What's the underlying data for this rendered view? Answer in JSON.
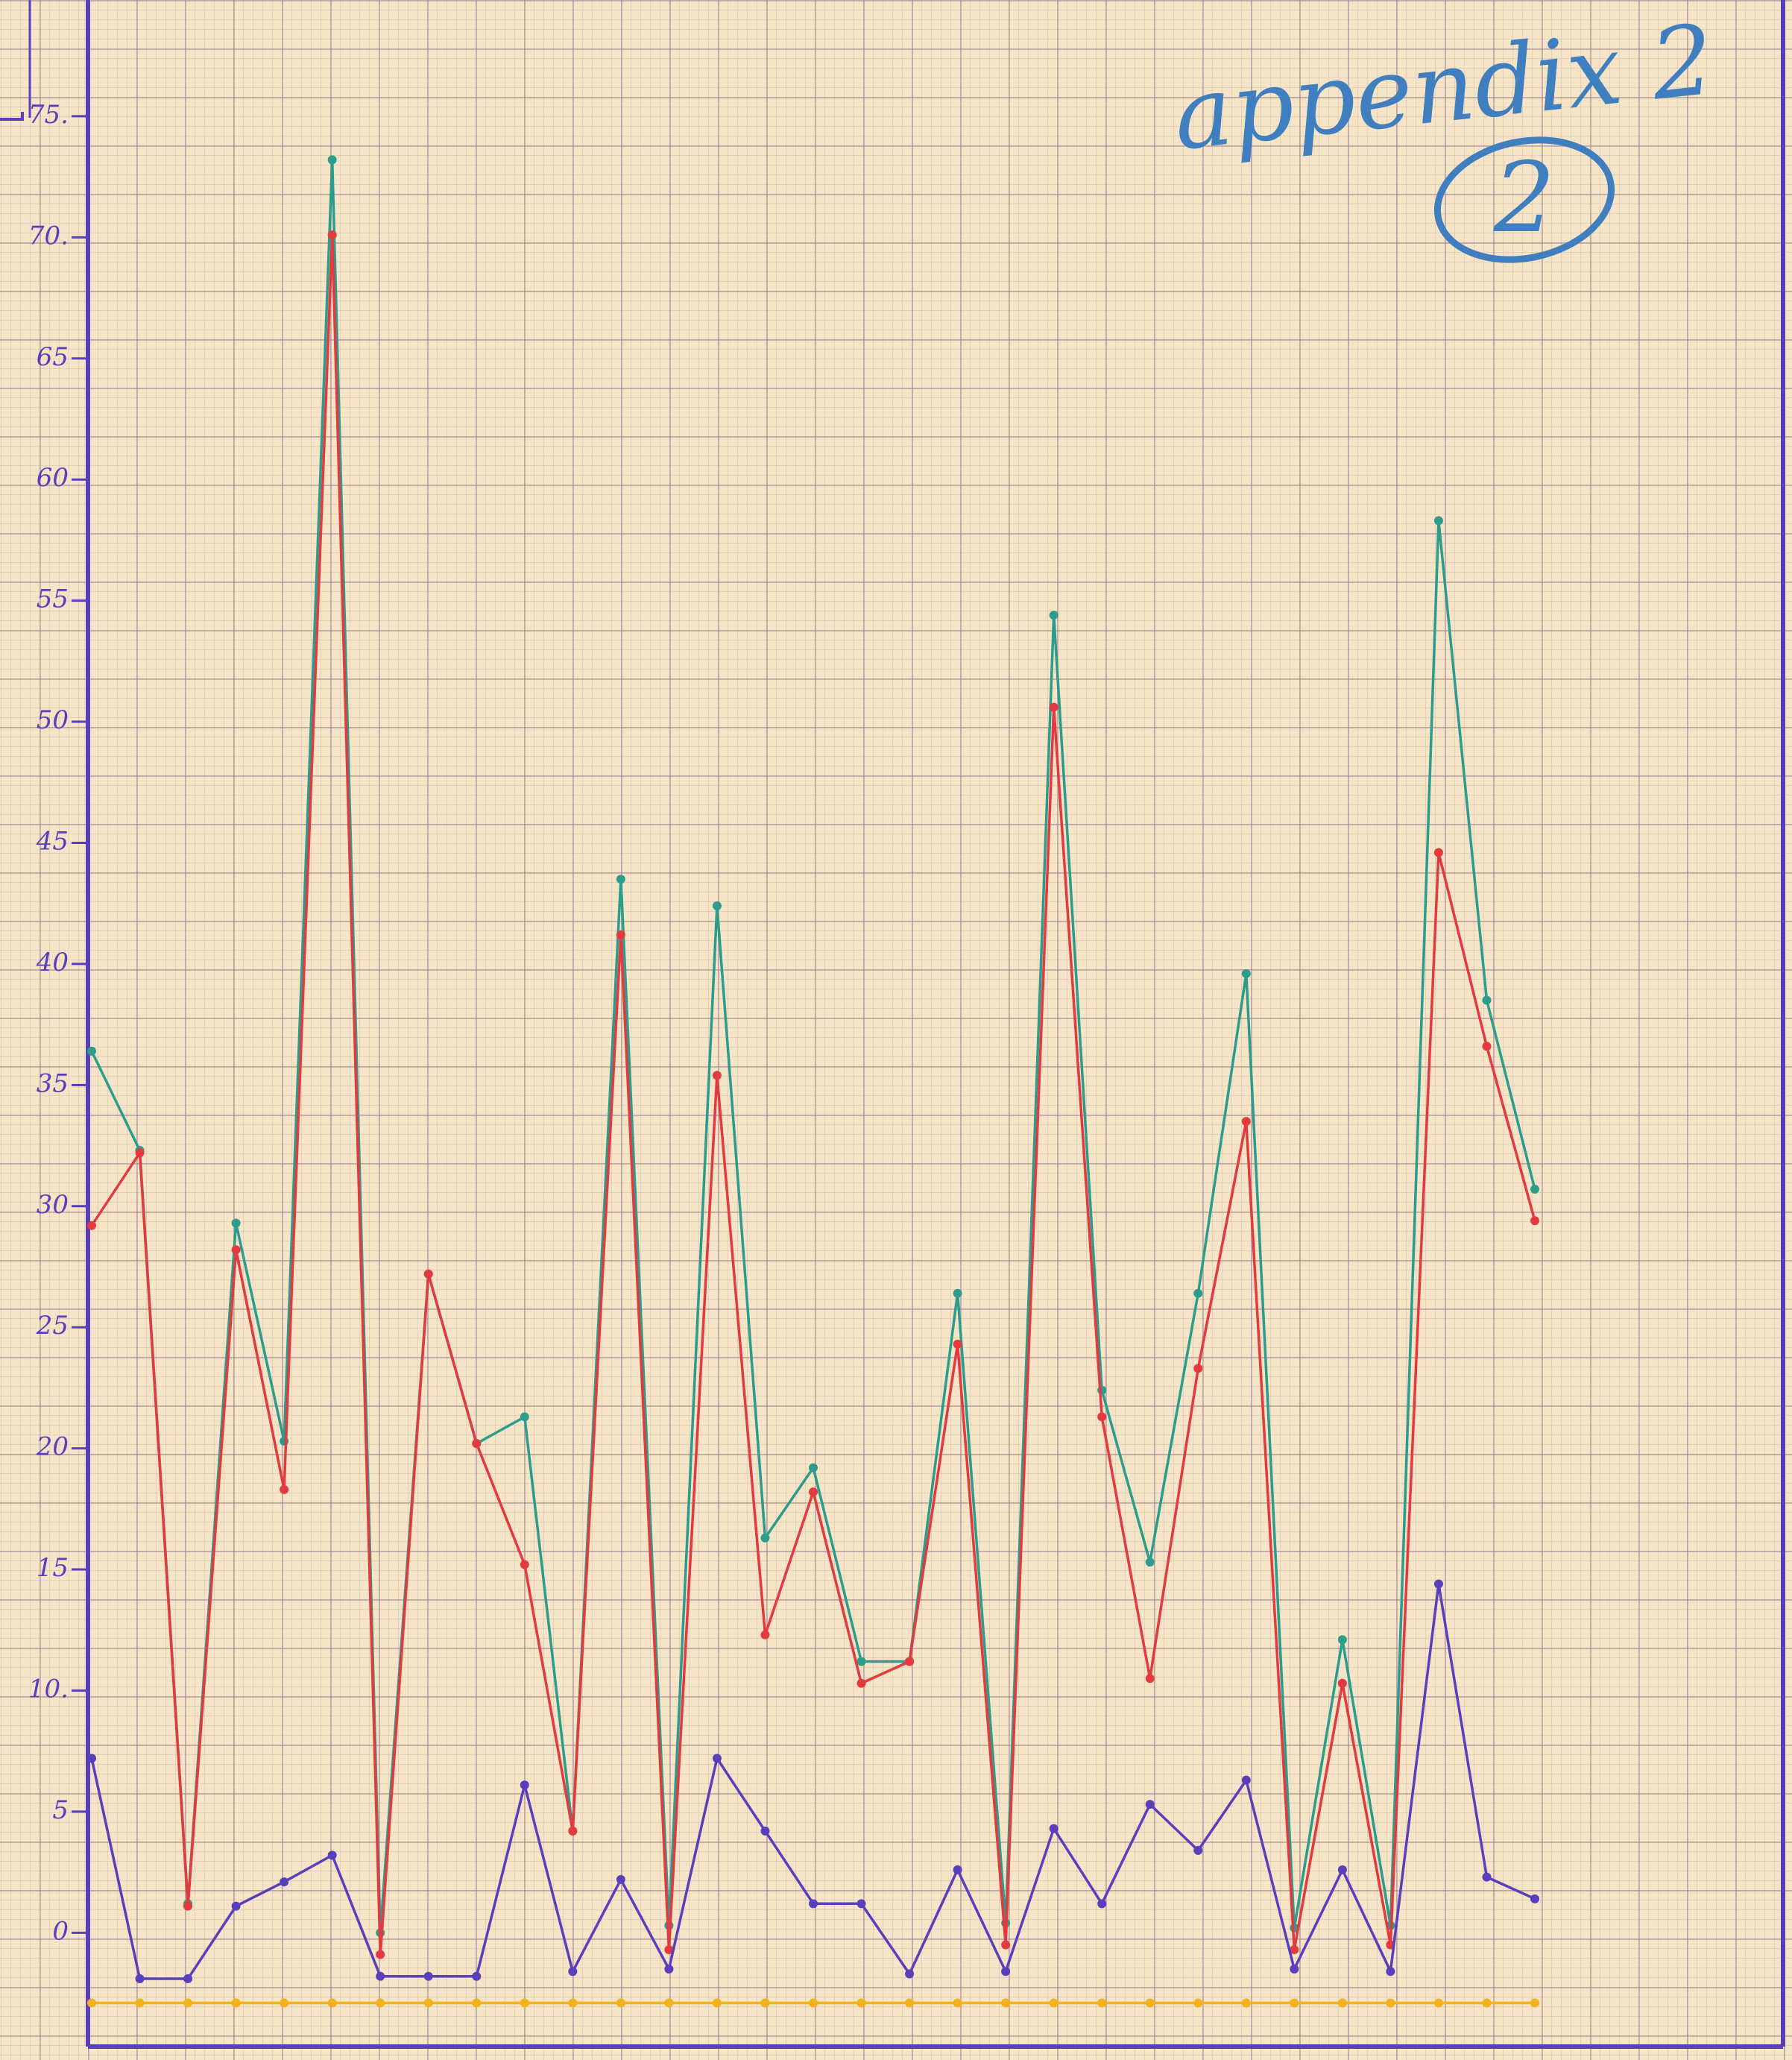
{
  "chart_data": {
    "type": "line",
    "annotations": [
      "appendix 2",
      "2"
    ],
    "categories": [
      null,
      null,
      null,
      null,
      null,
      null,
      null,
      null,
      null,
      null,
      null,
      null,
      null,
      null,
      null,
      null,
      null,
      null,
      null,
      null,
      null,
      null,
      null,
      null,
      null,
      null,
      null,
      null,
      null,
      null,
      null
    ],
    "series": [
      {
        "color": "#2c9c8c",
        "values": [
          36.4,
          32.3,
          1.2,
          29.3,
          20.3,
          73.2,
          0,
          27.2,
          20.2,
          21.3,
          4.2,
          43.5,
          0.3,
          42.4,
          16.3,
          19.2,
          11.2,
          11.2,
          26.4,
          0.4,
          54.4,
          22.4,
          15.3,
          26.4,
          39.6,
          0.2,
          12.1,
          0.3,
          58.3,
          38.5,
          30.7
        ]
      },
      {
        "color": "#e23a3f",
        "values": [
          29.2,
          32.2,
          1.1,
          28.2,
          18.3,
          70.1,
          -0.9,
          27.2,
          20.2,
          15.2,
          4.2,
          41.2,
          -0.7,
          35.4,
          12.3,
          18.2,
          10.3,
          11.2,
          24.3,
          -0.5,
          50.6,
          21.3,
          10.5,
          23.3,
          33.5,
          -0.7,
          10.3,
          -0.5,
          44.6,
          36.6,
          29.4
        ]
      },
      {
        "color": "#5a3fbd",
        "values": [
          7.2,
          -1.9,
          -1.9,
          1.1,
          2.1,
          3.2,
          -1.8,
          -1.8,
          -1.8,
          6.1,
          -1.6,
          2.2,
          -1.5,
          7.2,
          4.2,
          1.2,
          1.2,
          -1.7,
          2.6,
          -1.6,
          4.3,
          1.2,
          5.3,
          3.4,
          6.3,
          -1.5,
          2.6,
          -1.6,
          14.4,
          2.3,
          1.4
        ]
      },
      {
        "color": "#f2b21c",
        "values": [
          -2.9,
          -2.9,
          -2.9,
          -2.9,
          -2.9,
          -2.9,
          -2.9,
          -2.9,
          -2.9,
          -2.9,
          -2.9,
          -2.9,
          -2.9,
          -2.9,
          -2.9,
          -2.9,
          -2.9,
          -2.9,
          -2.9,
          -2.9,
          -2.9,
          -2.9,
          -2.9,
          -2.9,
          -2.9,
          -2.9,
          -2.9,
          -2.9,
          -2.9,
          -2.9,
          -2.9
        ]
      }
    ],
    "ylim": [
      -4.7,
      79.8
    ],
    "yticks": [
      0,
      5,
      {
        "value": 10,
        "label": "10."
      },
      15,
      20,
      25,
      30,
      35,
      40,
      45,
      50,
      55,
      60,
      65,
      {
        "value": 70,
        "label": "70."
      },
      {
        "value": 75,
        "label": "75."
      }
    ]
  }
}
